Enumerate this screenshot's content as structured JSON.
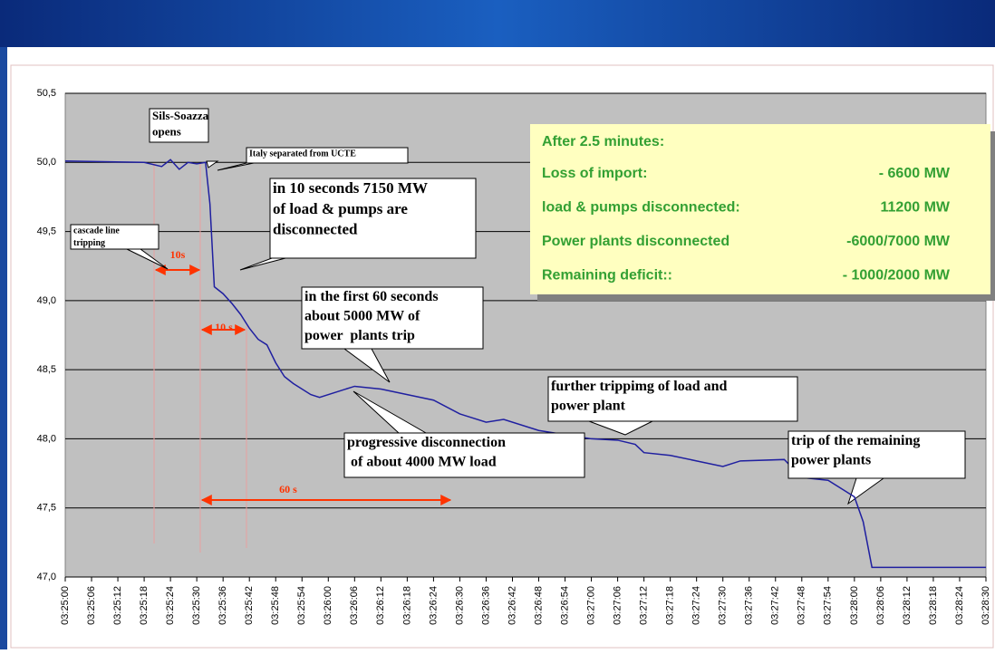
{
  "chart_data": {
    "type": "line",
    "x": [
      "03:25:00",
      "03:25:18",
      "03:25:22",
      "03:25:24",
      "03:25:26",
      "03:25:28",
      "03:25:30",
      "03:25:32",
      "03:25:33",
      "03:25:34",
      "03:25:36",
      "03:25:38",
      "03:25:40",
      "03:25:42",
      "03:25:44",
      "03:25:46",
      "03:25:48",
      "03:25:50",
      "03:25:52",
      "03:25:56",
      "03:25:58",
      "03:26:02",
      "03:26:06",
      "03:26:12",
      "03:26:18",
      "03:26:24",
      "03:26:30",
      "03:26:36",
      "03:26:40",
      "03:26:48",
      "03:26:54",
      "03:27:00",
      "03:27:06",
      "03:27:10",
      "03:27:12",
      "03:27:18",
      "03:27:24",
      "03:27:30",
      "03:27:34",
      "03:27:44",
      "03:27:48",
      "03:27:54",
      "03:27:58",
      "03:28:00",
      "03:28:02",
      "03:28:04",
      "03:28:30"
    ],
    "series": [
      {
        "color": "#1f1fa0",
        "values": [
          50.01,
          50.0,
          49.97,
          50.02,
          49.95,
          50.0,
          49.99,
          50.0,
          49.7,
          49.1,
          49.05,
          48.98,
          48.9,
          48.8,
          48.72,
          48.68,
          48.55,
          48.45,
          48.4,
          48.32,
          48.3,
          48.34,
          48.38,
          48.36,
          48.32,
          48.28,
          48.18,
          48.12,
          48.14,
          48.06,
          48.03,
          48.0,
          47.99,
          47.96,
          47.9,
          47.88,
          47.84,
          47.8,
          47.84,
          47.85,
          47.72,
          47.7,
          47.62,
          47.58,
          47.4,
          47.07,
          47.07
        ]
      }
    ],
    "xlim": [
      "03:25:00",
      "03:28:30"
    ],
    "xticks": [
      "03:25:00",
      "03:25:06",
      "03:25:12",
      "03:25:18",
      "03:25:24",
      "03:25:30",
      "03:25:36",
      "03:25:42",
      "03:25:48",
      "03:25:54",
      "03:26:00",
      "03:26:06",
      "03:26:12",
      "03:26:18",
      "03:26:24",
      "03:26:30",
      "03:26:36",
      "03:26:42",
      "03:26:48",
      "03:26:54",
      "03:27:00",
      "03:27:06",
      "03:27:12",
      "03:27:18",
      "03:27:24",
      "03:27:30",
      "03:27:36",
      "03:27:42",
      "03:27:48",
      "03:27:54",
      "03:28:00",
      "03:28:06",
      "03:28:12",
      "03:28:18",
      "03:28:24",
      "03:28:30"
    ],
    "ylim": [
      47.0,
      50.5
    ],
    "yticks": [
      {
        "value": 47.0,
        "label": "47,0"
      },
      {
        "value": 47.5,
        "label": "47,5"
      },
      {
        "value": 48.0,
        "label": "48,0"
      },
      {
        "value": 48.5,
        "label": "48,5"
      },
      {
        "value": 49.0,
        "label": "49,0"
      },
      {
        "value": 49.5,
        "label": "49,5"
      },
      {
        "value": 50.0,
        "label": "50,0"
      },
      {
        "value": 50.5,
        "label": "50,5"
      }
    ],
    "grid": true,
    "annotations": [
      {
        "lines": [
          "Sils-Soazza",
          "opens"
        ]
      },
      {
        "lines": [
          "Italy separated from UCTE"
        ]
      },
      {
        "lines": [
          "in 10 seconds 7150 MW",
          "of load & pumps are",
          "disconnected"
        ]
      },
      {
        "lines": [
          "cascade line",
          "tripping"
        ]
      },
      {
        "lines": [
          "in the first 60 seconds",
          "about 5000 MW of",
          "power  plants trip"
        ]
      },
      {
        "lines": [
          "further trippimg of load and",
          "power plant"
        ]
      },
      {
        "lines": [
          "progressive disconnection",
          " of about 4000 MW load"
        ]
      },
      {
        "lines": [
          "trip of the remaining",
          "power plants"
        ]
      }
    ],
    "interval_labels": [
      "10s",
      "10 s",
      "60 s"
    ],
    "info_box": {
      "title": "After 2.5 minutes:",
      "rows": [
        [
          "Loss of import:",
          "- 6600 MW"
        ],
        [
          "load & pumps disconnected:",
          "11200 MW"
        ],
        [
          "Power plants disconnected",
          "-6000/7000 MW"
        ],
        [
          "Remaining deficit::",
          "- 1000/2000 MW"
        ]
      ]
    }
  }
}
